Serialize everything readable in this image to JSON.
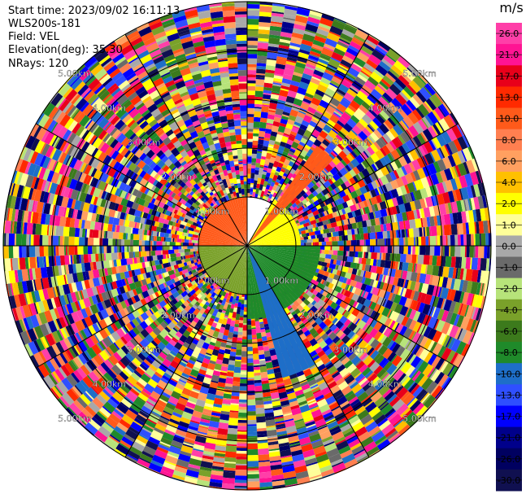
{
  "header": {
    "start_time": "Start time: 2023/09/02 16:11:13",
    "instrument": "WLS200s-181",
    "field": "Field: VEL",
    "elevation": "Elevation(deg): 35.30",
    "nrays": "NRays: 120"
  },
  "chart_data": {
    "type": "heatmap",
    "projection": "polar-ppi",
    "field": "VEL",
    "n_rays": 120,
    "range_rings_km": [
      1.0,
      2.0,
      3.0,
      4.0,
      5.0
    ],
    "ring_labels": [
      "1.00km",
      "2.00km",
      "3.00km",
      "4.00km",
      "5.00km"
    ],
    "max_range_km": 5.0,
    "colorbar": {
      "unit": "m/s",
      "ticks": [
        "26.0",
        "21.0",
        "17.0",
        "13.0",
        "10.0",
        "8.0",
        "6.0",
        "4.0",
        "2.0",
        "1.0",
        "0.0",
        "-1.0",
        "-2.0",
        "-4.0",
        "-6.0",
        "-8.0",
        "-10.0",
        "-13.0",
        "-17.0",
        "-21.0",
        "-26.0",
        "-30.0"
      ],
      "colors": [
        "#ff3fa8",
        "#ff1493",
        "#e8001a",
        "#ff2a00",
        "#ff5a1a",
        "#ff7f50",
        "#ffa060",
        "#ffc000",
        "#ffff00",
        "#ffff99",
        "#a8a8a8",
        "#6a6a6a",
        "#b7e37a",
        "#7aa12a",
        "#3c7a1c",
        "#1f8a2a",
        "#1e6ec8",
        "#2f4fff",
        "#0000ff",
        "#00008b",
        "#000060",
        "#101050"
      ]
    },
    "near_field_sectors": [
      {
        "az_start": 270,
        "az_end": 360,
        "value": 10.0,
        "range_km": 1.0
      },
      {
        "az_start": 30,
        "az_end": 90,
        "value": 2.0,
        "range_km": 1.1
      },
      {
        "az_start": 90,
        "az_end": 180,
        "value": -8.0,
        "range_km": 1.5
      },
      {
        "az_start": 180,
        "az_end": 270,
        "value": -4.0,
        "range_km": 1.0
      },
      {
        "az_start": 35,
        "az_end": 45,
        "value": 10.0,
        "range_km": 2.5
      },
      {
        "az_start": 150,
        "az_end": 165,
        "value": -10.0,
        "range_km": 2.8
      }
    ],
    "noise_beyond_km": 1.0
  }
}
